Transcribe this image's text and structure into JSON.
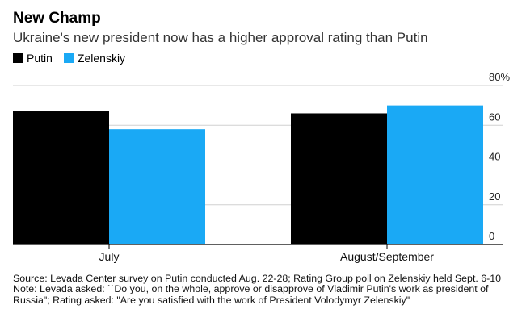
{
  "title": "New Champ",
  "subtitle": "Ukraine's new president now has a higher approval rating than Putin",
  "chart_data": {
    "type": "bar",
    "categories": [
      "July",
      "August/September"
    ],
    "series": [
      {
        "name": "Putin",
        "color": "#000000",
        "values": [
          67,
          66
        ]
      },
      {
        "name": "Zelenskiy",
        "color": "#1aa9f5",
        "values": [
          58,
          70
        ]
      }
    ],
    "ylim": [
      0,
      80
    ],
    "yticks": [
      0,
      20,
      40,
      60,
      80
    ],
    "ytick_labels": [
      "0",
      "20",
      "40",
      "60",
      "80%"
    ],
    "yaxis_position": "right",
    "grid": true,
    "legend": "top-left"
  },
  "notes": {
    "source": "Source: Levada Center survey on Putin conducted Aug. 22-28; Rating Group poll on Zelenskiy held Sept. 6-10",
    "note": "Note: Levada asked: ``Do you, on the whole, approve or disapprove of Vladimir Putin's work as president of Russia\"; Rating asked: \"Are you satisfied with the work of President Volodymyr Zelenskiy\""
  }
}
